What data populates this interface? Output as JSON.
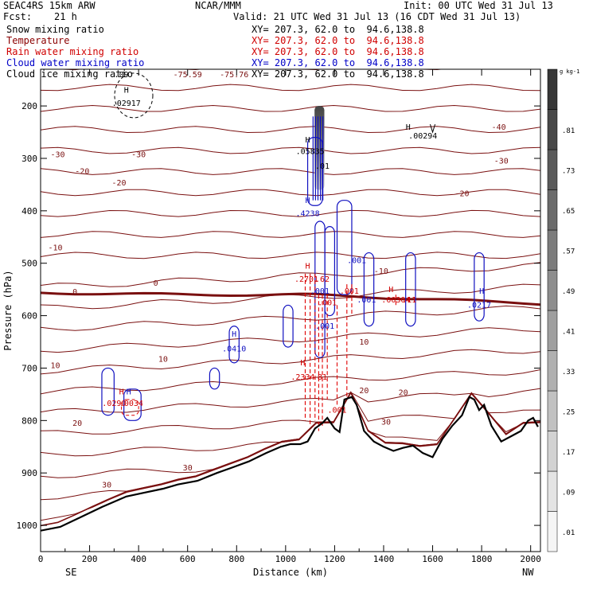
{
  "header": {
    "model": "SEAC4RS 15km ARW",
    "center": "NCAR/MMM",
    "fcst_label": "Fcst:",
    "fcst_value": "21 h",
    "init": "Init: 00 UTC Wed 31 Jul 13",
    "valid": "Valid: 21 UTC Wed 31 Jul 13 (16 CDT Wed 31 Jul 13)"
  },
  "fields": [
    {
      "name": "Snow mixing ratio",
      "xy": "",
      "color": "#000000"
    },
    {
      "name": "Temperature",
      "xy": "XY= 207.3, 62.0 to  94.6,138.8",
      "color": "#8b0000"
    },
    {
      "name": "Rain water mixing ratio",
      "xy": "XY= 207.3, 62.0 to  94.6,138.8",
      "color": "#d00000"
    },
    {
      "name": "Cloud water mixing ratio",
      "xy": "XY= 207.3, 62.0 to  94.6,138.8",
      "color": "#0000c8"
    },
    {
      "name": "Cloud ice mixing ratio",
      "xy": "XY= 207.3, 62.0 to  94.6,138.8",
      "color": "#000000"
    }
  ],
  "snow_xy": "XY= 207.3, 62.0 to  94.6,138.8",
  "chart_data": {
    "type": "contour-cross-section",
    "xlabel": "Distance (km)",
    "ylabel": "Pressure (hPa)",
    "xlim": [
      0,
      2040
    ],
    "ylim": [
      1050,
      130
    ],
    "x_ticks": [
      0,
      200,
      400,
      600,
      800,
      1000,
      1200,
      1400,
      1600,
      1800,
      2000
    ],
    "y_ticks": [
      200,
      300,
      400,
      500,
      600,
      700,
      800,
      900,
      1000
    ],
    "left_end_label": "SE",
    "right_end_label": "NW",
    "colorbar": {
      "unit": "g kg-1",
      "levels": [
        ".01",
        ".09",
        ".17",
        ".25",
        ".33",
        ".41",
        ".49",
        ".57",
        ".65",
        ".73",
        ".81"
      ]
    },
    "terrain": {
      "x": [
        0,
        80,
        160,
        250,
        350,
        420,
        500,
        560,
        640,
        720,
        780,
        850,
        920,
        980,
        1020,
        1060,
        1090,
        1120,
        1150,
        1170,
        1200,
        1220,
        1240,
        1270,
        1290,
        1320,
        1360,
        1400,
        1440,
        1480,
        1520,
        1560,
        1600,
        1640,
        1680,
        1720,
        1750,
        1770,
        1790,
        1810,
        1840,
        1880,
        1920,
        1960,
        1990,
        2010,
        2030
      ],
      "p": [
        1010,
        1003,
        985,
        965,
        945,
        938,
        930,
        922,
        915,
        900,
        890,
        878,
        862,
        850,
        845,
        845,
        840,
        815,
        805,
        795,
        815,
        822,
        760,
        755,
        770,
        820,
        840,
        850,
        858,
        852,
        848,
        862,
        870,
        835,
        810,
        790,
        755,
        760,
        780,
        770,
        810,
        840,
        830,
        820,
        800,
        795,
        812
      ]
    },
    "zero_isotherm_p": 560,
    "temperature_labels": [
      {
        "text": "-75.59",
        "x": 600,
        "p": 145
      },
      {
        "text": "-75.76",
        "x": 790,
        "p": 145
      },
      {
        "text": "-40",
        "x": 1870,
        "p": 245
      },
      {
        "text": "-30",
        "x": 70,
        "p": 298
      },
      {
        "text": "-30",
        "x": 400,
        "p": 298
      },
      {
        "text": "-30",
        "x": 1880,
        "p": 310
      },
      {
        "text": "-20",
        "x": 170,
        "p": 330
      },
      {
        "text": "-20",
        "x": 320,
        "p": 352
      },
      {
        "text": "-20",
        "x": 1720,
        "p": 372
      },
      {
        "text": "-10",
        "x": 60,
        "p": 475
      },
      {
        "text": "-10",
        "x": 1390,
        "p": 520
      },
      {
        "text": "0",
        "x": 140,
        "p": 560
      },
      {
        "text": "0",
        "x": 470,
        "p": 543
      },
      {
        "text": "10",
        "x": 60,
        "p": 700
      },
      {
        "text": "10",
        "x": 500,
        "p": 688
      },
      {
        "text": "10",
        "x": 1320,
        "p": 655
      },
      {
        "text": "20",
        "x": 1320,
        "p": 748
      },
      {
        "text": "20",
        "x": 1480,
        "p": 752
      },
      {
        "text": "20",
        "x": 150,
        "p": 810
      },
      {
        "text": "30",
        "x": 1410,
        "p": 808
      },
      {
        "text": "30",
        "x": 600,
        "p": 895
      },
      {
        "text": "30",
        "x": 270,
        "p": 928
      }
    ],
    "cloud_water_labels": [
      {
        "text": "H",
        "x": 1090,
        "p": 385
      },
      {
        "text": ".4238",
        "x": 1090,
        "p": 410
      },
      {
        "text": ".001",
        "x": 1290,
        "p": 500
      },
      {
        "text": ".001",
        "x": 1330,
        "p": 575
      },
      {
        "text": ".001",
        "x": 1140,
        "p": 558
      },
      {
        "text": ".001",
        "x": 1160,
        "p": 625
      },
      {
        "text": "H",
        "x": 790,
        "p": 640
      },
      {
        "text": ".0410",
        "x": 790,
        "p": 668
      },
      {
        "text": "H",
        "x": 1800,
        "p": 558
      },
      {
        "text": ".0217",
        "x": 1790,
        "p": 585
      },
      {
        "text": "H",
        "x": 360,
        "p": 750
      }
    ],
    "rain_water_labels": [
      {
        "text": "H",
        "x": 1090,
        "p": 510
      },
      {
        "text": ".2701",
        "x": 1085,
        "p": 535
      },
      {
        "text": ".62",
        "x": 1150,
        "p": 535
      },
      {
        "text": ".001",
        "x": 1170,
        "p": 580
      },
      {
        "text": ".001",
        "x": 1260,
        "p": 558
      },
      {
        "text": "H",
        "x": 1430,
        "p": 555
      },
      {
        "text": ".00304",
        "x": 1450,
        "p": 575
      },
      {
        "text": ".11",
        "x": 1505,
        "p": 575
      },
      {
        "text": "H",
        "x": 1070,
        "p": 695
      },
      {
        "text": ".2334",
        "x": 1070,
        "p": 722
      },
      {
        "text": ".81",
        "x": 1140,
        "p": 722
      },
      {
        "text": ".001",
        "x": 1210,
        "p": 785
      },
      {
        "text": "H",
        "x": 330,
        "p": 750
      },
      {
        "text": ".0290",
        "x": 300,
        "p": 772
      },
      {
        "text": ".0034",
        "x": 370,
        "p": 772
      }
    ],
    "cloud_ice_labels": [
      {
        "text": ".09",
        "x": 330,
        "p": 145
      },
      {
        "text": "H",
        "x": 350,
        "p": 175
      },
      {
        "text": ".02917",
        "x": 350,
        "p": 200
      },
      {
        "text": "H",
        "x": 1090,
        "p": 270
      },
      {
        "text": ".05835",
        "x": 1100,
        "p": 292
      },
      {
        "text": ".01",
        "x": 1150,
        "p": 320
      },
      {
        "text": "H",
        "x": 1500,
        "p": 245
      },
      {
        "text": ".00294",
        "x": 1560,
        "p": 262
      }
    ]
  }
}
